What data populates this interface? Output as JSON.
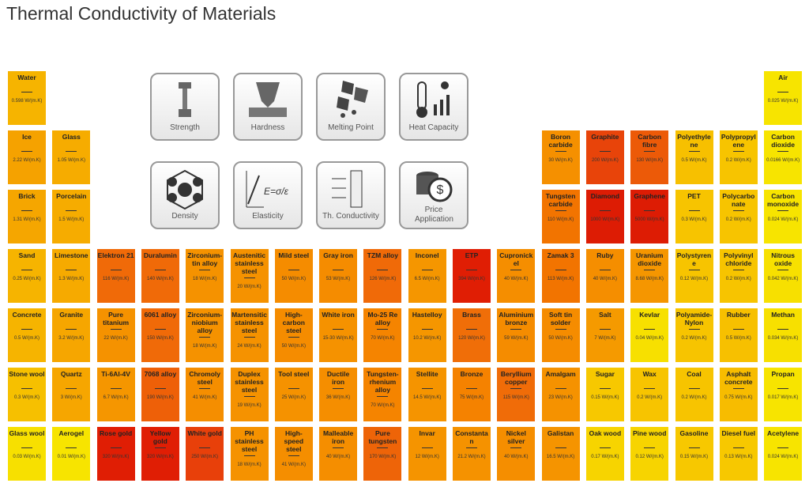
{
  "header": {
    "title": "Thermal Conductivity of Materials"
  },
  "buttons": [
    "Strength",
    "Hardness",
    "Melting Point",
    "Heat Capacity",
    "Density",
    "Elasticity",
    "Th. Conductivity",
    "Price Application"
  ],
  "rows": [
    [
      {
        "name": "Water",
        "value": "0.598 W/(m.K)",
        "color": "#f6b400"
      },
      null,
      null,
      null,
      null,
      null,
      null,
      null,
      null,
      null,
      null,
      null,
      null,
      null,
      null,
      null,
      null,
      {
        "name": "Air",
        "value": "0.025 W/(m.K)",
        "color": "#f7e400"
      }
    ],
    [
      {
        "name": "Ice",
        "value": "2.22 W/(m.K)",
        "color": "#f5a200"
      },
      {
        "name": "Glass",
        "value": "1.05 W/(m.K)",
        "color": "#f6ac00"
      },
      null,
      null,
      null,
      null,
      null,
      null,
      null,
      null,
      null,
      null,
      {
        "name": "Boron carbide",
        "value": "30 W/(m.K)",
        "color": "#f59000"
      },
      {
        "name": "Graphite",
        "value": "200 W/(m.K)",
        "color": "#e8440a"
      },
      {
        "name": "Carbon fibre",
        "value": "130 W/(m.K)",
        "color": "#ec5a08"
      },
      {
        "name": "Polyethylene",
        "value": "0.5 W/(m.K)",
        "color": "#f7c000"
      },
      {
        "name": "Polypropylene",
        "value": "0.2 W/(m.K)",
        "color": "#f7c400"
      },
      {
        "name": "Carbon dioxide",
        "value": "0.0166 W/(m.K)",
        "color": "#f7e400"
      }
    ],
    [
      {
        "name": "Brick",
        "value": "1.31 W/(m.K)",
        "color": "#f5a600"
      },
      {
        "name": "Porcelain",
        "value": "1.5 W/(m.K)",
        "color": "#f6ac00"
      },
      null,
      null,
      null,
      null,
      null,
      null,
      null,
      null,
      null,
      null,
      {
        "name": "Tungsten carbide",
        "value": "110 W/(m.K)",
        "color": "#f27400"
      },
      {
        "name": "Diamond",
        "value": "1000 W/(m.K)",
        "color": "#dd1c04"
      },
      {
        "name": "Graphene",
        "value": "5000 W/(m.K)",
        "color": "#dd1c04"
      },
      {
        "name": "PET",
        "value": "0.3 W/(m.K)",
        "color": "#f7c400"
      },
      {
        "name": "Polycarbonate",
        "value": "0.2 W/(m.K)",
        "color": "#f7c400"
      },
      {
        "name": "Carbon monoxide",
        "value": "0.024 W/(m.K)",
        "color": "#f7e400"
      }
    ],
    [
      {
        "name": "Sand",
        "value": "0.25 W/(m.K)",
        "color": "#f6b400"
      },
      {
        "name": "Limestone",
        "value": "1.3 W/(m.K)",
        "color": "#f6aa00"
      },
      {
        "name": "Elektron 21",
        "value": "116 W/(m.K)",
        "color": "#f06a08"
      },
      {
        "name": "Duralumin",
        "value": "140 W/(m.K)",
        "color": "#f06a08"
      },
      {
        "name": "Zirconium-tin alloy",
        "value": "18 W/(m.K)",
        "color": "#f59200"
      },
      {
        "name": "Austenitic stainless steel",
        "value": "20 W/(m.K)",
        "color": "#f59200"
      },
      {
        "name": "Mild steel",
        "value": "50 W/(m.K)",
        "color": "#f58c00"
      },
      {
        "name": "Gray iron",
        "value": "53 W/(m.K)",
        "color": "#f58c00"
      },
      {
        "name": "TZM alloy",
        "value": "126 W/(m.K)",
        "color": "#f06a08"
      },
      {
        "name": "Inconel",
        "value": "6.5 W/(m.K)",
        "color": "#f59600"
      },
      {
        "name": "ETP",
        "value": "394 W/(m.K)",
        "color": "#e01e04"
      },
      {
        "name": "Cupronickel",
        "value": "40 W/(m.K)",
        "color": "#f58e00"
      },
      {
        "name": "Zamak 3",
        "value": "113 W/(m.K)",
        "color": "#f27400"
      },
      {
        "name": "Ruby",
        "value": "40 W/(m.K)",
        "color": "#f58e00"
      },
      {
        "name": "Uranium dioxide",
        "value": "8.68 W/(m.K)",
        "color": "#f59600"
      },
      {
        "name": "Polystyrene",
        "value": "0.12 W/(m.K)",
        "color": "#f7c400"
      },
      {
        "name": "Polyvinyl chloride",
        "value": "0.2 W/(m.K)",
        "color": "#f7c400"
      },
      {
        "name": "Nitrous oxide",
        "value": "0.042 W/(m.K)",
        "color": "#f7e000"
      }
    ],
    [
      {
        "name": "Concrete",
        "value": "0.5 W/(m.K)",
        "color": "#f6b400"
      },
      {
        "name": "Granite",
        "value": "3.2 W/(m.K)",
        "color": "#f6a600"
      },
      {
        "name": "Pure titanium",
        "value": "22 W/(m.K)",
        "color": "#f59200"
      },
      {
        "name": "6061 alloy",
        "value": "150 W/(m.K)",
        "color": "#f06a08"
      },
      {
        "name": "Zirconium-niobium alloy",
        "value": "18 W/(m.K)",
        "color": "#f59200"
      },
      {
        "name": "Martensitic stainless steel",
        "value": "24 W/(m.K)",
        "color": "#f59200"
      },
      {
        "name": "High-carbon steel",
        "value": "50 W/(m.K)",
        "color": "#f58c00"
      },
      {
        "name": "White iron",
        "value": "15-30 W/(m.K)",
        "color": "#f59200"
      },
      {
        "name": "Mo-25 Re alloy",
        "value": "70 W/(m.K)",
        "color": "#f58400"
      },
      {
        "name": "Hastelloy",
        "value": "10.2 W/(m.K)",
        "color": "#f59600"
      },
      {
        "name": "Brass",
        "value": "120 W/(m.K)",
        "color": "#f06e08"
      },
      {
        "name": "Aluminium bronze",
        "value": "59 W/(m.K)",
        "color": "#f58c00"
      },
      {
        "name": "Soft tin solder",
        "value": "50 W/(m.K)",
        "color": "#f58c00"
      },
      {
        "name": "Salt",
        "value": "7 W/(m.K)",
        "color": "#f59a00"
      },
      {
        "name": "Kevlar",
        "value": "0.04 W/(m.K)",
        "color": "#f7e000"
      },
      {
        "name": "Polyamide-Nylon",
        "value": "0.2 W/(m.K)",
        "color": "#f7c400"
      },
      {
        "name": "Rubber",
        "value": "0.5 W/(m.K)",
        "color": "#f7c000"
      },
      {
        "name": "Methan",
        "value": "0.034 W/(m.K)",
        "color": "#f7e000"
      }
    ],
    [
      {
        "name": "Stone wool",
        "value": "0.3 W/(m.K)",
        "color": "#f6c000"
      },
      {
        "name": "Quartz",
        "value": "3 W/(m.K)",
        "color": "#f6a600"
      },
      {
        "name": "Ti-6Al-4V",
        "value": "6.7 W/(m.K)",
        "color": "#f59600"
      },
      {
        "name": "7068 alloy",
        "value": "190 W/(m.K)",
        "color": "#ee6008"
      },
      {
        "name": "Chromoly steel",
        "value": "41 W/(m.K)",
        "color": "#f58e00"
      },
      {
        "name": "Duplex stainless steel",
        "value": "19 W/(m.K)",
        "color": "#f59200"
      },
      {
        "name": "Tool steel",
        "value": "25 W/(m.K)",
        "color": "#f59200"
      },
      {
        "name": "Ductile iron",
        "value": "36 W/(m.K)",
        "color": "#f58e00"
      },
      {
        "name": "Tungsten-rhenium alloy",
        "value": "70 W/(m.K)",
        "color": "#f58400"
      },
      {
        "name": "Stellite",
        "value": "14.5 W/(m.K)",
        "color": "#f59400"
      },
      {
        "name": "Bronze",
        "value": "75 W/(m.K)",
        "color": "#f58200"
      },
      {
        "name": "Beryllium copper",
        "value": "115 W/(m.K)",
        "color": "#f06c08"
      },
      {
        "name": "Amalgam",
        "value": "23 W/(m.K)",
        "color": "#f59200"
      },
      {
        "name": "Sugar",
        "value": "0.15 W/(m.K)",
        "color": "#f7c800"
      },
      {
        "name": "Wax",
        "value": "0.2 W/(m.K)",
        "color": "#f7c400"
      },
      {
        "name": "Coal",
        "value": "0.2 W/(m.K)",
        "color": "#f7c400"
      },
      {
        "name": "Asphalt concrete",
        "value": "0.75 W/(m.K)",
        "color": "#f7bc00"
      },
      {
        "name": "Propan",
        "value": "0.017 W/(m.K)",
        "color": "#f7e400"
      }
    ],
    [
      {
        "name": "Glass wool",
        "value": "0.03 W/(m.K)",
        "color": "#f7e000"
      },
      {
        "name": "Aerogel",
        "value": "0.01 W/(m.K)",
        "color": "#f7e400"
      },
      {
        "name": "Rose gold",
        "value": "320 W/(m.K)",
        "color": "#e01e04"
      },
      {
        "name": "Yellow gold",
        "value": "320 W/(m.K)",
        "color": "#e01e04"
      },
      {
        "name": "White gold",
        "value": "250 W/(m.K)",
        "color": "#e8400a"
      },
      {
        "name": "PH stainless steel",
        "value": "18 W/(m.K)",
        "color": "#f59200"
      },
      {
        "name": "High-speed steel",
        "value": "41 W/(m.K)",
        "color": "#f58e00"
      },
      {
        "name": "Malleable iron",
        "value": "40 W/(m.K)",
        "color": "#f58e00"
      },
      {
        "name": "Pure tungsten",
        "value": "170 W/(m.K)",
        "color": "#ee6408"
      },
      {
        "name": "Invar",
        "value": "12 W/(m.K)",
        "color": "#f59400"
      },
      {
        "name": "Constantan",
        "value": "21.2 W/(m.K)",
        "color": "#f59200"
      },
      {
        "name": "Nickel silver",
        "value": "40 W/(m.K)",
        "color": "#f58e00"
      },
      {
        "name": "Galistan",
        "value": "16.5 W/(m.K)",
        "color": "#f59400"
      },
      {
        "name": "Oak wood",
        "value": "0.17 W/(m.K)",
        "color": "#f7d400"
      },
      {
        "name": "Pine wood",
        "value": "0.12 W/(m.K)",
        "color": "#f7d400"
      },
      {
        "name": "Gasoline",
        "value": "0.15 W/(m.K)",
        "color": "#f7c800"
      },
      {
        "name": "Diesel fuel",
        "value": "0.13 W/(m.K)",
        "color": "#f7c800"
      },
      {
        "name": "Acetylene",
        "value": "0.024 W/(m.K)",
        "color": "#f7e400"
      }
    ]
  ]
}
